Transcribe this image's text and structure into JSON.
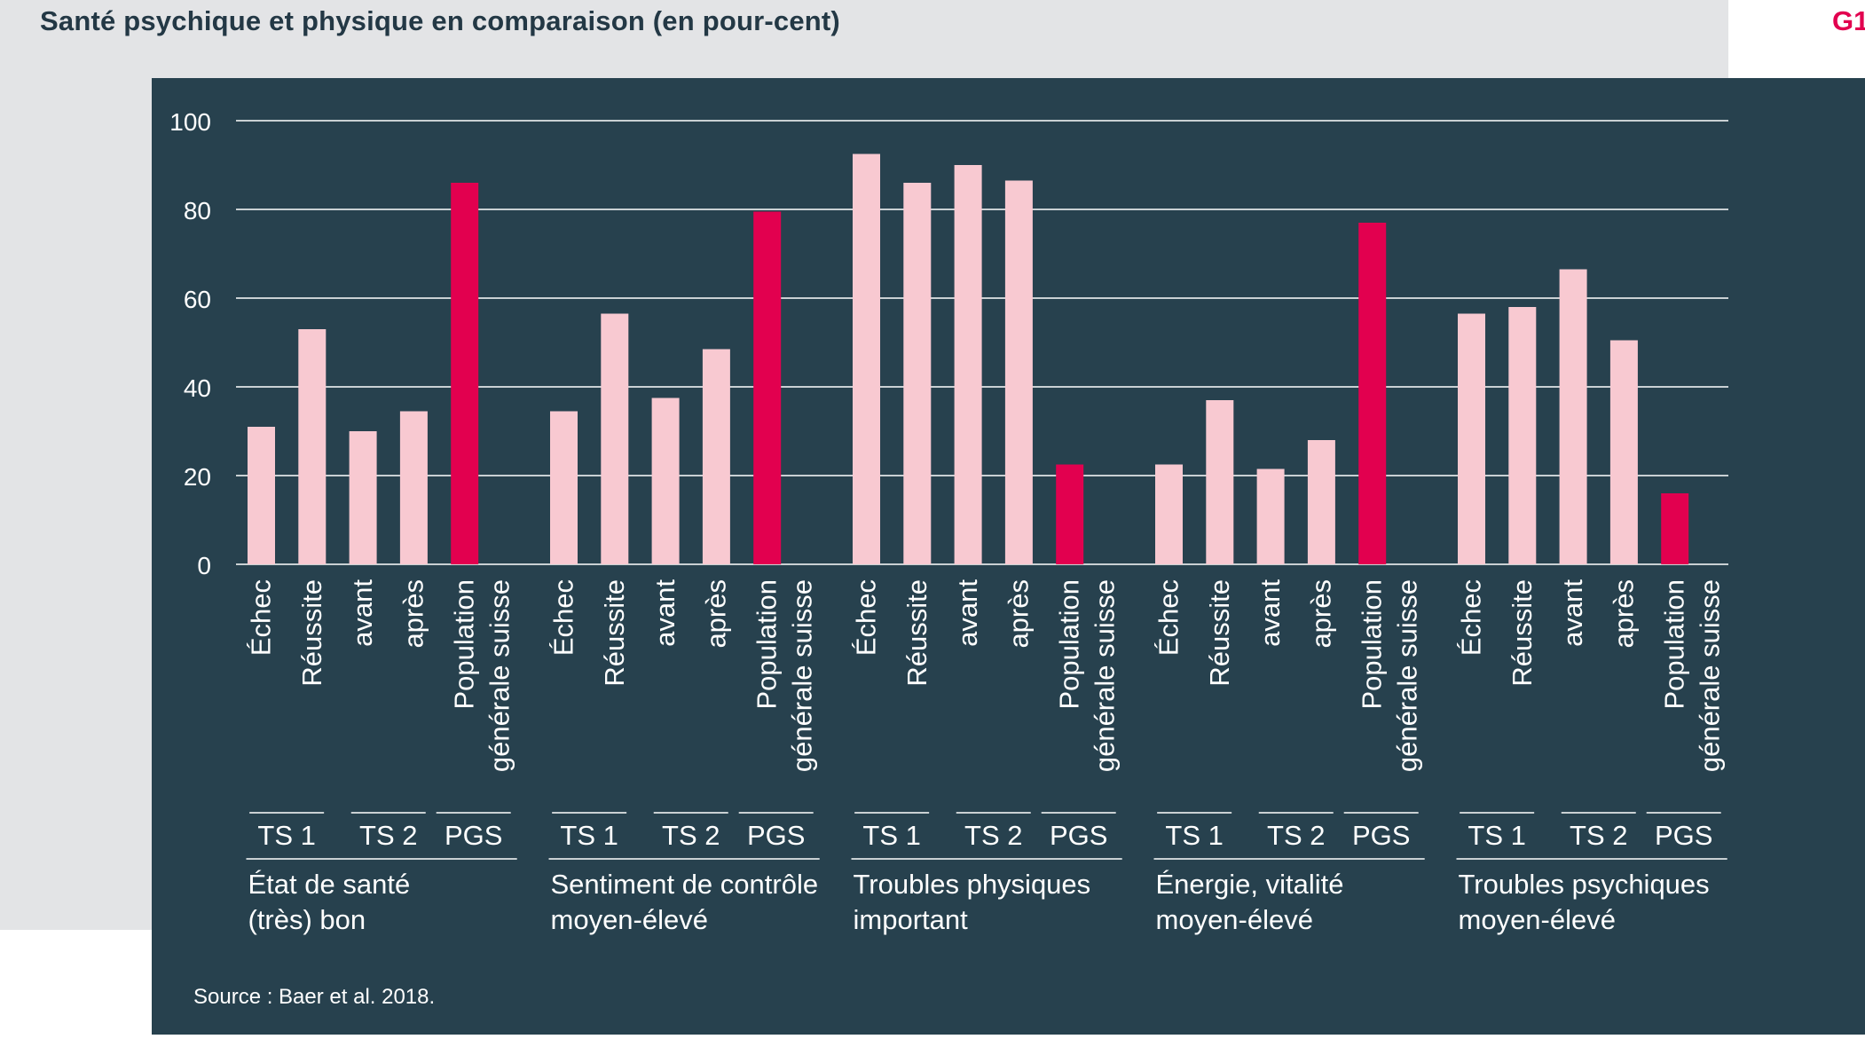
{
  "header": {
    "title": "Santé psychique et physique en comparaison (en pour-cent)",
    "figure_number": "G1"
  },
  "footer": {
    "source": "Source : Baer et al. 2018."
  },
  "colors": {
    "background_outer": "#e3e4e6",
    "panel": "#27414e",
    "bar_light": "#f8c9d1",
    "bar_highlight": "#e2004f",
    "gridline": "#ffffff",
    "title_text": "#233845",
    "figure_number": "#e2004f"
  },
  "chart_data": {
    "type": "bar",
    "ylim": [
      0,
      100
    ],
    "yticks": [
      0,
      20,
      40,
      60,
      80,
      100
    ],
    "grid": true,
    "legend": "none",
    "bar_categories": [
      "Échec",
      "Réussite",
      "avant",
      "après",
      [
        "Population",
        "générale suisse"
      ]
    ],
    "subgroups": [
      "TS 1",
      "TS 2",
      "PGS"
    ],
    "groups": [
      {
        "label": [
          "État de santé",
          "(très) bon"
        ],
        "values": [
          31,
          53,
          30,
          34.5,
          86
        ]
      },
      {
        "label": [
          "Sentiment de contrôle",
          "moyen-élevé"
        ],
        "values": [
          34.5,
          56.5,
          37.5,
          48.5,
          79.5
        ]
      },
      {
        "label": [
          "Troubles physiques",
          "important"
        ],
        "values": [
          92.5,
          86,
          90,
          86.5,
          22.5
        ]
      },
      {
        "label": [
          "Énergie, vitalité",
          "moyen-élevé"
        ],
        "values": [
          22.5,
          37,
          21.5,
          28,
          77
        ]
      },
      {
        "label": [
          "Troubles psychiques",
          "moyen-élevé"
        ],
        "values": [
          56.5,
          58,
          66.5,
          50.5,
          16
        ]
      }
    ]
  }
}
